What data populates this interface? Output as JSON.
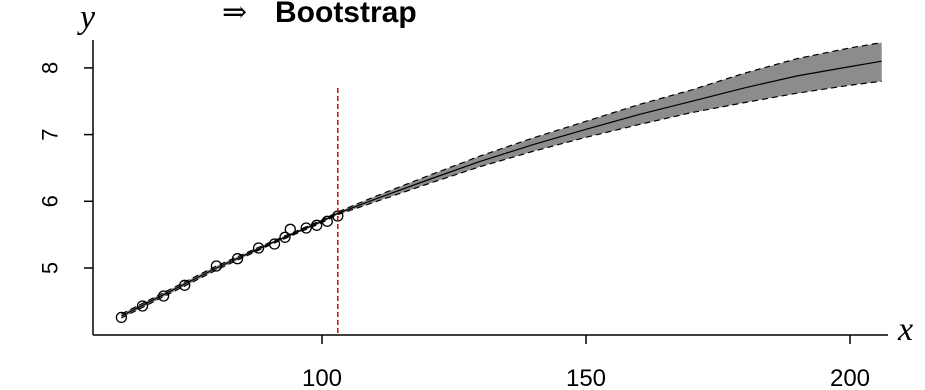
{
  "chart_data": {
    "type": "line",
    "title_arrow": "⇒",
    "title": "Bootstrap",
    "xlabel": "x",
    "ylabel": "y",
    "xlim": [
      58,
      206
    ],
    "ylim": [
      4.1,
      8.5
    ],
    "xticks": [
      100,
      150,
      200
    ],
    "xtick_labels": [
      "100",
      "150",
      "200"
    ],
    "yticks": [
      5,
      6,
      7,
      8
    ],
    "ytick_labels": [
      "5",
      "6",
      "7",
      "8"
    ],
    "grid": false,
    "series": [
      {
        "x": [
          62,
          70,
          80,
          90,
          100,
          103,
          110,
          120,
          130,
          140,
          150,
          160,
          170,
          180,
          190,
          200,
          206
        ],
        "values": [
          4.28,
          4.6,
          5.0,
          5.36,
          5.7,
          5.82,
          6.03,
          6.32,
          6.6,
          6.85,
          7.08,
          7.3,
          7.5,
          7.7,
          7.88,
          8.02,
          8.1
        ]
      }
    ],
    "band": {
      "x": [
        62,
        70,
        80,
        90,
        100,
        103,
        110,
        120,
        130,
        140,
        150,
        160,
        170,
        180,
        190,
        200,
        206
      ],
      "lower": [
        4.25,
        4.57,
        4.97,
        5.34,
        5.68,
        5.8,
        5.99,
        6.26,
        6.52,
        6.75,
        6.96,
        7.15,
        7.33,
        7.48,
        7.62,
        7.74,
        7.8
      ],
      "upper": [
        4.31,
        4.63,
        5.03,
        5.38,
        5.72,
        5.84,
        6.07,
        6.38,
        6.68,
        6.95,
        7.2,
        7.45,
        7.67,
        7.92,
        8.14,
        8.3,
        8.38
      ]
    },
    "observed_points": {
      "x": [
        62,
        66,
        70,
        74,
        80,
        84,
        88,
        91,
        93,
        94,
        97,
        99,
        101,
        103
      ],
      "y": [
        4.26,
        4.43,
        4.58,
        4.74,
        5.03,
        5.14,
        5.3,
        5.36,
        5.46,
        5.58,
        5.6,
        5.64,
        5.7,
        5.78
      ]
    },
    "vline": {
      "x": 103,
      "color": "#e00000",
      "style": "dashed"
    },
    "colors": {
      "band": "#8c8c8c",
      "line": "#000000",
      "vline": "#e00000"
    }
  }
}
